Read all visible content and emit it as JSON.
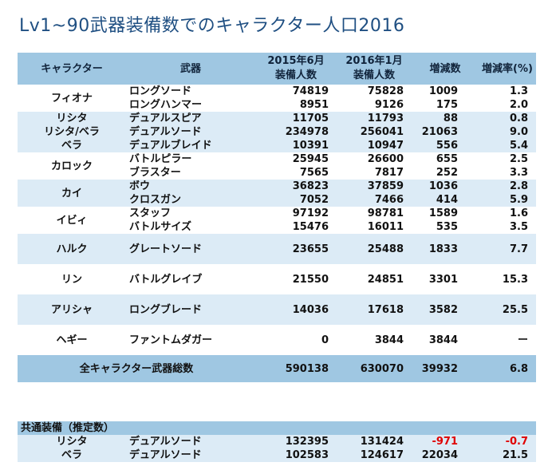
{
  "title": "Lv1~90武器装備数でのキャラクター人口2016",
  "headers": {
    "character": "キャラクター",
    "weapon": "武器",
    "y2015_l1": "2015年6月",
    "y2015_l2": "装備人数",
    "y2016_l1": "2016年1月",
    "y2016_l2": "装備人数",
    "diff": "増減数",
    "rate": "増減率(%)"
  },
  "groups": [
    {
      "character": "フィオナ",
      "rows": [
        {
          "weapon": "ロングソード",
          "y2015": "74819",
          "y2016": "75828",
          "diff": "1009",
          "rate": "1.3"
        },
        {
          "weapon": "ロングハンマー",
          "y2015": "8951",
          "y2016": "9126",
          "diff": "175",
          "rate": "2.0"
        }
      ]
    },
    {
      "character": "リシタ",
      "rows": [
        {
          "weapon": "デュアルスピア",
          "y2015": "11705",
          "y2016": "11793",
          "diff": "88",
          "rate": "0.8"
        }
      ]
    },
    {
      "character": "リシタ/ベラ",
      "rows": [
        {
          "weapon": "デュアルソード",
          "y2015": "234978",
          "y2016": "256041",
          "diff": "21063",
          "rate": "9.0"
        }
      ]
    },
    {
      "character": "ベラ",
      "rows": [
        {
          "weapon": "デュアルブレイド",
          "y2015": "10391",
          "y2016": "10947",
          "diff": "556",
          "rate": "5.4"
        }
      ]
    },
    {
      "character": "カロック",
      "rows": [
        {
          "weapon": "バトルピラー",
          "y2015": "25945",
          "y2016": "26600",
          "diff": "655",
          "rate": "2.5"
        },
        {
          "weapon": "ブラスター",
          "y2015": "7565",
          "y2016": "7817",
          "diff": "252",
          "rate": "3.3"
        }
      ]
    },
    {
      "character": "カイ",
      "rows": [
        {
          "weapon": "ボウ",
          "y2015": "36823",
          "y2016": "37859",
          "diff": "1036",
          "rate": "2.8"
        },
        {
          "weapon": "クロスガン",
          "y2015": "7052",
          "y2016": "7466",
          "diff": "414",
          "rate": "5.9"
        }
      ]
    },
    {
      "character": "イビィ",
      "rows": [
        {
          "weapon": "スタッフ",
          "y2015": "97192",
          "y2016": "98781",
          "diff": "1589",
          "rate": "1.6"
        },
        {
          "weapon": "バトルサイズ",
          "y2015": "15476",
          "y2016": "16011",
          "diff": "535",
          "rate": "3.5"
        }
      ]
    },
    {
      "character": "ハルク",
      "rows": [
        {
          "weapon": "グレートソード",
          "y2015": "23655",
          "y2016": "25488",
          "diff": "1833",
          "rate": "7.7"
        }
      ]
    },
    {
      "character": "リン",
      "rows": [
        {
          "weapon": "バトルグレイブ",
          "y2015": "21550",
          "y2016": "24851",
          "diff": "3301",
          "rate": "15.3"
        }
      ]
    },
    {
      "character": "アリシャ",
      "rows": [
        {
          "weapon": "ロングブレード",
          "y2015": "14036",
          "y2016": "17618",
          "diff": "3582",
          "rate": "25.5"
        }
      ]
    },
    {
      "character": "ヘギー",
      "rows": [
        {
          "weapon": "ファントムダガー",
          "y2015": "0",
          "y2016": "3844",
          "diff": "3844",
          "rate": "ー"
        }
      ]
    }
  ],
  "total": {
    "label": "全キャラクター武器総数",
    "y2015": "590138",
    "y2016": "630070",
    "diff": "39932",
    "rate": "6.8"
  },
  "common": {
    "title": "共通装備（推定数）",
    "rows": [
      {
        "character": "リシタ",
        "weapon": "デュアルソード",
        "y2015": "132395",
        "y2016": "131424",
        "diff": "-971",
        "rate": "-0.7",
        "negative": true
      },
      {
        "character": "ベラ",
        "weapon": "デュアルソード",
        "y2015": "102583",
        "y2016": "124617",
        "diff": "22034",
        "rate": "21.5",
        "negative": false
      }
    ]
  },
  "colors": {
    "title": "#1f4f82",
    "header": "#9fc7e2",
    "band": "#dcebf6",
    "negative": "#e00000"
  }
}
